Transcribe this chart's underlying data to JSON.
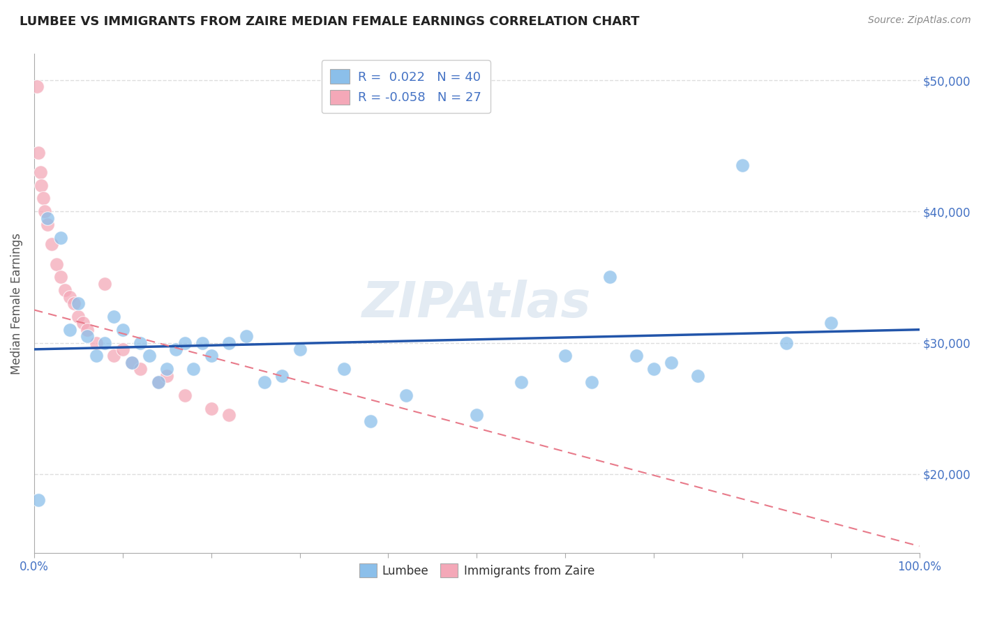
{
  "title": "LUMBEE VS IMMIGRANTS FROM ZAIRE MEDIAN FEMALE EARNINGS CORRELATION CHART",
  "source": "Source: ZipAtlas.com",
  "ylabel": "Median Female Earnings",
  "xlim": [
    0,
    100
  ],
  "ylim": [
    14000,
    52000
  ],
  "yticks": [
    20000,
    30000,
    40000,
    50000
  ],
  "ytick_labels": [
    "$20,000",
    "$30,000",
    "$40,000",
    "$50,000"
  ],
  "legend_entries": [
    {
      "label": "R =  0.022   N = 40",
      "color": "#aec6e8"
    },
    {
      "label": "R = -0.058   N = 27",
      "color": "#f4b8c1"
    }
  ],
  "lumbee_color": "#8bbfea",
  "zaire_color": "#f4a8b8",
  "trendline_lumbee_color": "#2255aa",
  "trendline_zaire_color": "#e87a8a",
  "background_color": "#ffffff",
  "grid_color": "#dddddd",
  "watermark": "ZIPAtlas",
  "title_color": "#333333",
  "yaxis_right_color": "#4472c4",
  "lumbee_x": [
    0.5,
    1.5,
    3.0,
    4.0,
    5.0,
    6.0,
    7.0,
    8.0,
    9.0,
    10.0,
    11.0,
    12.0,
    13.0,
    14.0,
    15.0,
    16.0,
    17.0,
    18.0,
    19.0,
    20.0,
    22.0,
    24.0,
    26.0,
    28.0,
    30.0,
    35.0,
    38.0,
    42.0,
    50.0,
    55.0,
    60.0,
    63.0,
    65.0,
    68.0,
    70.0,
    72.0,
    75.0,
    80.0,
    85.0,
    90.0
  ],
  "lumbee_y": [
    18000,
    39500,
    38000,
    31000,
    33000,
    30500,
    29000,
    30000,
    32000,
    31000,
    28500,
    30000,
    29000,
    27000,
    28000,
    29500,
    30000,
    28000,
    30000,
    29000,
    30000,
    30500,
    27000,
    27500,
    29500,
    28000,
    24000,
    26000,
    24500,
    27000,
    29000,
    27000,
    35000,
    29000,
    28000,
    28500,
    27500,
    43500,
    30000,
    31500
  ],
  "zaire_x": [
    0.3,
    0.5,
    0.7,
    0.8,
    1.0,
    1.2,
    1.5,
    2.0,
    2.5,
    3.0,
    3.5,
    4.0,
    4.5,
    5.0,
    5.5,
    6.0,
    7.0,
    8.0,
    9.0,
    10.0,
    11.0,
    12.0,
    14.0,
    15.0,
    17.0,
    20.0,
    22.0
  ],
  "zaire_y": [
    49500,
    44500,
    43000,
    42000,
    41000,
    40000,
    39000,
    37500,
    36000,
    35000,
    34000,
    33500,
    33000,
    32000,
    31500,
    31000,
    30000,
    34500,
    29000,
    29500,
    28500,
    28000,
    27000,
    27500,
    26000,
    25000,
    24500
  ],
  "trendline_lumbee_x0": 0,
  "trendline_lumbee_y0": 29500,
  "trendline_lumbee_x1": 100,
  "trendline_lumbee_y1": 31000,
  "trendline_zaire_x0": 0,
  "trendline_zaire_y0": 32500,
  "trendline_zaire_x1": 100,
  "trendline_zaire_y1": 14500
}
